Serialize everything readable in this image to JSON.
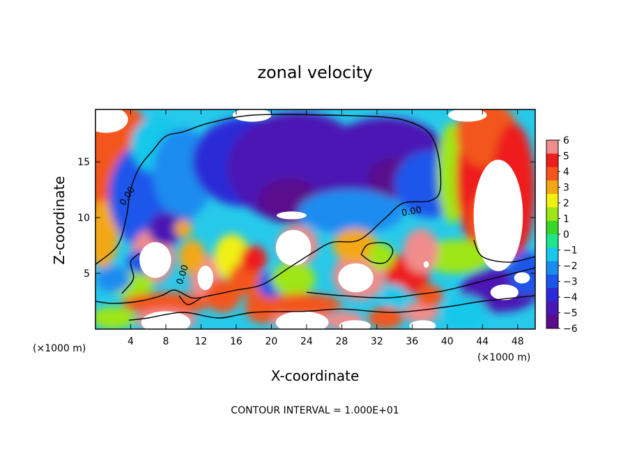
{
  "chart_data": {
    "type": "heatmap",
    "title": "zonal velocity",
    "xlabel": "X-coordinate",
    "ylabel": "Z-coordinate",
    "x_unit_label": "(×1000 m)",
    "footer": "CONTOUR INTERVAL = 1.000E+01",
    "xlim": [
      0,
      50
    ],
    "ylim": [
      0,
      19.7
    ],
    "x_ticks": [
      4,
      8,
      12,
      16,
      20,
      24,
      28,
      32,
      36,
      40,
      44,
      48
    ],
    "y_ticks": [
      5,
      10,
      15
    ],
    "contour_label": "0.00",
    "colorbar": {
      "range": [
        -6,
        6
      ],
      "tick_labels": [
        "6",
        "5",
        "4",
        "3",
        "2",
        "1",
        "0",
        "−1",
        "−2",
        "−3",
        "−4",
        "−5",
        "−6"
      ],
      "colors": [
        "#5a0c8c",
        "#4b15b4",
        "#2c29d6",
        "#1a56ea",
        "#1a8cf0",
        "#17c8ea",
        "#1ee68c",
        "#38d628",
        "#9ee614",
        "#f0f014",
        "#f2a814",
        "#f2561c",
        "#ee1e1e",
        "#f08c8c"
      ]
    },
    "blobs": [
      {
        "x": 2.0,
        "y": 17.5,
        "rx": 4.0,
        "ry": 3.0,
        "v": 4.0
      },
      {
        "x": 1.5,
        "y": 13.0,
        "rx": 2.5,
        "ry": 4.5,
        "v": 4.0
      },
      {
        "x": 0.8,
        "y": 8.5,
        "rx": 1.8,
        "ry": 3.0,
        "v": 3.0
      },
      {
        "x": 6.5,
        "y": 12.0,
        "rx": 5.0,
        "ry": 5.0,
        "v": -3.0
      },
      {
        "x": 7.0,
        "y": 16.5,
        "rx": 3.0,
        "ry": 2.5,
        "v": -1.5
      },
      {
        "x": 10.0,
        "y": 14.0,
        "rx": 3.5,
        "ry": 4.0,
        "v": -2.0
      },
      {
        "x": 17.0,
        "y": 15.0,
        "rx": 6.0,
        "ry": 4.0,
        "v": -3.5
      },
      {
        "x": 23.0,
        "y": 14.5,
        "rx": 8.0,
        "ry": 5.0,
        "v": -5.0
      },
      {
        "x": 22.0,
        "y": 11.5,
        "rx": 3.5,
        "ry": 2.0,
        "v": -6.0
      },
      {
        "x": 33.0,
        "y": 15.5,
        "rx": 7.0,
        "ry": 3.5,
        "v": -4.5
      },
      {
        "x": 34.0,
        "y": 13.5,
        "rx": 3.0,
        "ry": 1.8,
        "v": -5.5
      },
      {
        "x": 38.0,
        "y": 13.0,
        "rx": 4.0,
        "ry": 3.0,
        "v": -3.0
      },
      {
        "x": 29.0,
        "y": 10.5,
        "rx": 6.0,
        "ry": 2.0,
        "v": -2.0
      },
      {
        "x": 40.5,
        "y": 14.0,
        "rx": 1.6,
        "ry": 4.5,
        "v": 1.0
      },
      {
        "x": 44.0,
        "y": 13.5,
        "rx": 3.0,
        "ry": 6.5,
        "v": 4.5
      },
      {
        "x": 45.5,
        "y": 9.5,
        "rx": 3.0,
        "ry": 3.5,
        "v": 4.0
      },
      {
        "x": 44.5,
        "y": 17.5,
        "rx": 3.5,
        "ry": 3.0,
        "v": 4.0
      },
      {
        "x": 47.5,
        "y": 12.5,
        "rx": 2.5,
        "ry": 6.0,
        "v": 5.0
      },
      {
        "x": 41.0,
        "y": 6.5,
        "rx": 4.0,
        "ry": 1.5,
        "v": 1.5
      },
      {
        "x": 46.0,
        "y": 3.5,
        "rx": 4.5,
        "ry": 2.0,
        "v": -4.5
      },
      {
        "x": 49.0,
        "y": 5.0,
        "rx": 2.0,
        "ry": 2.0,
        "v": -3.0
      },
      {
        "x": 42.0,
        "y": 1.5,
        "rx": 2.5,
        "ry": 1.5,
        "v": -1.5
      },
      {
        "x": 6.5,
        "y": 6.5,
        "rx": 2.5,
        "ry": 2.5,
        "v": 6.5
      },
      {
        "x": 8.0,
        "y": 9.0,
        "rx": 2.0,
        "ry": 1.5,
        "v": -5.0
      },
      {
        "x": 10.0,
        "y": 9.0,
        "rx": 1.0,
        "ry": 0.8,
        "v": 3.0
      },
      {
        "x": 12.5,
        "y": 4.5,
        "rx": 1.8,
        "ry": 2.2,
        "v": 5.5
      },
      {
        "x": 11.0,
        "y": 6.5,
        "rx": 1.5,
        "ry": 1.5,
        "v": 3.0
      },
      {
        "x": 4.0,
        "y": 4.0,
        "rx": 2.5,
        "ry": 1.2,
        "v": 1.5
      },
      {
        "x": 2.0,
        "y": 4.5,
        "rx": 2.0,
        "ry": 1.2,
        "v": -2.0
      },
      {
        "x": 5.0,
        "y": 6.0,
        "rx": 1.5,
        "ry": 1.0,
        "v": -3.0
      },
      {
        "x": 8.0,
        "y": 2.3,
        "rx": 5.0,
        "ry": 1.0,
        "v": 4.0
      },
      {
        "x": 8.0,
        "y": 0.8,
        "rx": 3.5,
        "ry": 1.0,
        "v": 6.5
      },
      {
        "x": 2.0,
        "y": 1.0,
        "rx": 2.5,
        "ry": 1.0,
        "v": 1.0
      },
      {
        "x": 15.5,
        "y": 6.5,
        "rx": 2.0,
        "ry": 2.0,
        "v": 2.5
      },
      {
        "x": 14.5,
        "y": 3.0,
        "rx": 2.0,
        "ry": 1.5,
        "v": 4.0
      },
      {
        "x": 17.0,
        "y": 4.5,
        "rx": 1.8,
        "ry": 1.5,
        "v": 3.5
      },
      {
        "x": 18.0,
        "y": 6.3,
        "rx": 1.5,
        "ry": 1.2,
        "v": 4.5
      },
      {
        "x": 19.0,
        "y": 2.0,
        "rx": 2.0,
        "ry": 1.5,
        "v": 3.5
      },
      {
        "x": 20.0,
        "y": 4.0,
        "rx": 1.5,
        "ry": 1.2,
        "v": -3.0
      },
      {
        "x": 23.0,
        "y": 7.5,
        "rx": 2.3,
        "ry": 1.8,
        "v": 6.5
      },
      {
        "x": 22.5,
        "y": 4.5,
        "rx": 2.5,
        "ry": 1.5,
        "v": 1.0
      },
      {
        "x": 23.5,
        "y": 0.8,
        "rx": 3.5,
        "ry": 1.0,
        "v": 6.5
      },
      {
        "x": 23.5,
        "y": 2.2,
        "rx": 4.5,
        "ry": 1.0,
        "v": 3.5
      },
      {
        "x": 30.0,
        "y": 4.8,
        "rx": 3.0,
        "ry": 2.2,
        "v": 6.5
      },
      {
        "x": 29.5,
        "y": 7.5,
        "rx": 2.5,
        "ry": 1.5,
        "v": 3.0
      },
      {
        "x": 28.5,
        "y": 0.7,
        "rx": 2.0,
        "ry": 0.9,
        "v": 6.5
      },
      {
        "x": 33.0,
        "y": 1.0,
        "rx": 2.0,
        "ry": 1.0,
        "v": 4.0
      },
      {
        "x": 35.5,
        "y": 5.0,
        "rx": 2.5,
        "ry": 1.8,
        "v": 4.5
      },
      {
        "x": 37.0,
        "y": 7.0,
        "rx": 2.0,
        "ry": 2.0,
        "v": 5.5
      },
      {
        "x": 37.5,
        "y": 5.8,
        "rx": 0.8,
        "ry": 0.8,
        "v": 6.5
      },
      {
        "x": 37.0,
        "y": 1.5,
        "rx": 2.0,
        "ry": 1.0,
        "v": 5.5
      },
      {
        "x": 38.0,
        "y": 3.0,
        "rx": 1.5,
        "ry": 1.0,
        "v": 4.0
      },
      {
        "x": 34.0,
        "y": 3.0,
        "rx": 1.5,
        "ry": 1.0,
        "v": -1.5
      },
      {
        "x": 32.5,
        "y": 6.5,
        "rx": 1.5,
        "ry": 1.2,
        "v": 1.5
      }
    ],
    "masks": [
      {
        "x": 1.2,
        "y": 18.8,
        "rx": 2.5,
        "ry": 1.2
      },
      {
        "x": 17.8,
        "y": 19.2,
        "rx": 2.2,
        "ry": 0.6
      },
      {
        "x": 42.3,
        "y": 19.2,
        "rx": 2.2,
        "ry": 0.6
      },
      {
        "x": 45.8,
        "y": 10.2,
        "rx": 2.8,
        "ry": 5.0
      },
      {
        "x": 6.8,
        "y": 6.2,
        "rx": 1.8,
        "ry": 1.6
      },
      {
        "x": 12.5,
        "y": 4.6,
        "rx": 0.9,
        "ry": 1.1
      },
      {
        "x": 22.5,
        "y": 7.3,
        "rx": 2.0,
        "ry": 1.6
      },
      {
        "x": 22.3,
        "y": 10.2,
        "rx": 1.7,
        "ry": 0.35
      },
      {
        "x": 29.6,
        "y": 4.6,
        "rx": 2.0,
        "ry": 1.3
      },
      {
        "x": 37.6,
        "y": 5.8,
        "rx": 0.3,
        "ry": 0.3
      },
      {
        "x": 8.0,
        "y": 0.6,
        "rx": 2.8,
        "ry": 1.0
      },
      {
        "x": 23.5,
        "y": 0.6,
        "rx": 3.0,
        "ry": 1.0
      },
      {
        "x": 29.5,
        "y": 0.3,
        "rx": 1.8,
        "ry": 0.5
      },
      {
        "x": 37.2,
        "y": 0.3,
        "rx": 1.5,
        "ry": 0.5
      },
      {
        "x": 46.5,
        "y": 3.3,
        "rx": 1.6,
        "ry": 0.7
      },
      {
        "x": 48.5,
        "y": 4.6,
        "rx": 0.9,
        "ry": 0.5
      }
    ],
    "zero_contours": [
      [
        [
          3.8,
          0.8
        ],
        [
          6.0,
          1.0
        ],
        [
          10.0,
          1.5
        ],
        [
          14.0,
          1.0
        ],
        [
          18.0,
          1.5
        ],
        [
          24.0,
          1.6
        ],
        [
          28.0,
          1.8
        ],
        [
          34.0,
          1.5
        ],
        [
          40.0,
          2.0
        ],
        [
          44.0,
          2.5
        ],
        [
          50.0,
          3.0
        ]
      ],
      [
        [
          0.0,
          5.8
        ],
        [
          2.5,
          7.5
        ],
        [
          3.5,
          10.0
        ],
        [
          4.0,
          12.5
        ],
        [
          5.0,
          14.5
        ],
        [
          6.5,
          16.0
        ],
        [
          8.0,
          17.3
        ],
        [
          10.0,
          17.7
        ],
        [
          13.0,
          18.5
        ],
        [
          18.0,
          19.2
        ],
        [
          26.0,
          19.2
        ],
        [
          33.0,
          19.0
        ],
        [
          36.0,
          18.5
        ],
        [
          38.0,
          17.5
        ],
        [
          39.0,
          15.5
        ],
        [
          39.2,
          12.5
        ],
        [
          38.0,
          11.5
        ],
        [
          35.0,
          11.3
        ],
        [
          33.0,
          10.0
        ],
        [
          30.0,
          8.0
        ],
        [
          27.0,
          7.8
        ],
        [
          25.0,
          7.0
        ],
        [
          22.0,
          5.5
        ],
        [
          19.0,
          4.0
        ],
        [
          16.0,
          3.5
        ],
        [
          13.0,
          3.0
        ],
        [
          11.0,
          2.8
        ],
        [
          9.0,
          3.5
        ],
        [
          7.5,
          3.0
        ],
        [
          5.0,
          2.5
        ],
        [
          2.0,
          2.3
        ],
        [
          0.0,
          2.5
        ]
      ],
      [
        [
          3.0,
          3.2
        ],
        [
          4.3,
          4.5
        ],
        [
          4.0,
          6.0
        ],
        [
          5.0,
          6.8
        ]
      ],
      [
        [
          24.0,
          3.3
        ],
        [
          28.0,
          3.0
        ],
        [
          33.0,
          2.8
        ],
        [
          36.5,
          3.1
        ],
        [
          40.0,
          3.5
        ],
        [
          45.0,
          4.5
        ],
        [
          50.0,
          5.5
        ]
      ],
      [
        [
          30.2,
          6.7
        ],
        [
          31.5,
          6.0
        ],
        [
          33.0,
          6.0
        ],
        [
          33.8,
          7.0
        ],
        [
          33.0,
          7.7
        ],
        [
          31.0,
          7.6
        ],
        [
          30.2,
          6.7
        ]
      ],
      [
        [
          43.0,
          8.0
        ],
        [
          44.0,
          6.5
        ],
        [
          47.0,
          6.0
        ],
        [
          50.0,
          6.5
        ]
      ],
      [
        [
          9.5,
          3.0
        ],
        [
          10.5,
          2.2
        ],
        [
          12.0,
          2.8
        ]
      ]
    ],
    "contour_label_positions": [
      {
        "x": 3.9,
        "y": 11.8,
        "angle": -58
      },
      {
        "x": 36.0,
        "y": 10.3,
        "angle": -10
      },
      {
        "x": 10.2,
        "y": 4.8,
        "angle": -72
      }
    ]
  }
}
